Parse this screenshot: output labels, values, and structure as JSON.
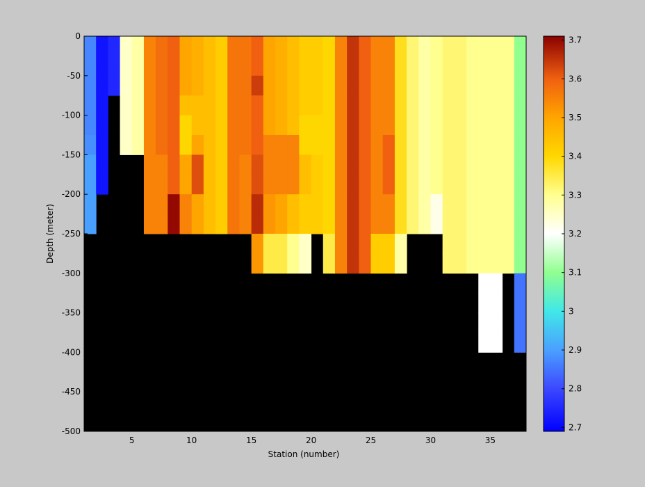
{
  "chart_data": {
    "type": "heatmap",
    "x_label": "Station (number)",
    "y_label": "Depth (meter)",
    "x_edges": [
      1,
      2,
      3,
      4,
      5,
      6,
      7,
      8,
      9,
      10,
      11,
      12,
      13,
      14,
      15,
      16,
      17,
      18,
      19,
      20,
      21,
      22,
      23,
      24,
      25,
      26,
      27,
      28,
      29,
      30,
      31,
      32,
      33,
      34,
      35,
      36,
      37,
      38
    ],
    "depth_edges": [
      0,
      -25,
      -50,
      -75,
      -100,
      -125,
      -150,
      -175,
      -200,
      -225,
      -250,
      -275,
      -300,
      -325,
      -350,
      -375,
      -400,
      -425,
      -450,
      -475,
      -500
    ],
    "xlim": [
      1,
      38
    ],
    "ylim": [
      -500,
      0
    ],
    "xticks": [
      5,
      10,
      15,
      20,
      25,
      30,
      35
    ],
    "yticks": [
      0,
      -50,
      -100,
      -150,
      -200,
      -250,
      -300,
      -350,
      -400,
      -450,
      -500
    ],
    "missing_color": "#000000",
    "clim": [
      2.69,
      3.71
    ],
    "cticks": [
      2.7,
      2.8,
      2.9,
      3,
      3.1,
      3.2,
      3.3,
      3.4,
      3.5,
      3.6,
      3.7
    ],
    "colormap": [
      [
        2.69,
        "#0000ff"
      ],
      [
        2.8,
        "#3c48ff"
      ],
      [
        2.9,
        "#4aa0ff"
      ],
      [
        3.0,
        "#40e8e8"
      ],
      [
        3.1,
        "#90ff90"
      ],
      [
        3.2,
        "#ffffff"
      ],
      [
        3.3,
        "#ffff90"
      ],
      [
        3.4,
        "#ffd700"
      ],
      [
        3.5,
        "#ffa500"
      ],
      [
        3.6,
        "#f06010"
      ],
      [
        3.71,
        "#8b0000"
      ]
    ],
    "values": [
      [
        2.87,
        2.87,
        2.87,
        2.87,
        2.87,
        2.88,
        2.9,
        2.9,
        2.9,
        2.9,
        null,
        null,
        null,
        null,
        null,
        null,
        null,
        null,
        null,
        null
      ],
      [
        2.72,
        2.72,
        2.72,
        2.72,
        2.72,
        2.72,
        2.72,
        2.72,
        null,
        null,
        null,
        null,
        null,
        null,
        null,
        null,
        null,
        null,
        null,
        null
      ],
      [
        2.75,
        2.75,
        2.75,
        null,
        null,
        null,
        null,
        null,
        null,
        null,
        null,
        null,
        null,
        null,
        null,
        null,
        null,
        null,
        null,
        null
      ],
      [
        3.25,
        3.25,
        3.25,
        3.25,
        3.25,
        3.25,
        null,
        null,
        null,
        null,
        null,
        null,
        null,
        null,
        null,
        null,
        null,
        null,
        null,
        null
      ],
      [
        3.28,
        3.28,
        3.28,
        3.28,
        3.28,
        3.28,
        null,
        null,
        null,
        null,
        null,
        null,
        null,
        null,
        null,
        null,
        null,
        null,
        null,
        null
      ],
      [
        3.55,
        3.55,
        3.55,
        3.55,
        3.55,
        3.55,
        3.55,
        3.55,
        3.55,
        3.55,
        null,
        null,
        null,
        null,
        null,
        null,
        null,
        null,
        null,
        null
      ],
      [
        3.58,
        3.58,
        3.58,
        3.58,
        3.58,
        3.58,
        3.55,
        3.55,
        3.55,
        3.55,
        null,
        null,
        null,
        null,
        null,
        null,
        null,
        null,
        null,
        null
      ],
      [
        3.6,
        3.6,
        3.6,
        3.6,
        3.6,
        3.6,
        3.6,
        3.6,
        3.7,
        3.7,
        null,
        null,
        null,
        null,
        null,
        null,
        null,
        null,
        null,
        null
      ],
      [
        3.5,
        3.5,
        3.5,
        3.45,
        3.4,
        3.4,
        3.5,
        3.5,
        3.55,
        3.55,
        null,
        null,
        null,
        null,
        null,
        null,
        null,
        null,
        null,
        null
      ],
      [
        3.48,
        3.48,
        3.48,
        3.45,
        3.45,
        3.5,
        3.62,
        3.62,
        3.5,
        3.5,
        null,
        null,
        null,
        null,
        null,
        null,
        null,
        null,
        null,
        null
      ],
      [
        3.45,
        3.45,
        3.45,
        3.45,
        3.45,
        3.45,
        3.45,
        3.45,
        3.45,
        3.45,
        null,
        null,
        null,
        null,
        null,
        null,
        null,
        null,
        null,
        null
      ],
      [
        3.42,
        3.42,
        3.42,
        3.42,
        3.42,
        3.42,
        3.42,
        3.42,
        3.42,
        3.42,
        null,
        null,
        null,
        null,
        null,
        null,
        null,
        null,
        null,
        null
      ],
      [
        3.57,
        3.57,
        3.57,
        3.57,
        3.57,
        3.57,
        3.57,
        3.57,
        3.57,
        3.57,
        null,
        null,
        null,
        null,
        null,
        null,
        null,
        null,
        null,
        null
      ],
      [
        3.57,
        3.57,
        3.57,
        3.57,
        3.57,
        3.57,
        3.55,
        3.55,
        3.55,
        3.55,
        null,
        null,
        null,
        null,
        null,
        null,
        null,
        null,
        null,
        null
      ],
      [
        3.6,
        3.6,
        3.64,
        3.6,
        3.6,
        3.6,
        3.62,
        3.62,
        3.66,
        3.66,
        3.52,
        3.52,
        null,
        null,
        null,
        null,
        null,
        null,
        null,
        null
      ],
      [
        3.5,
        3.5,
        3.5,
        3.5,
        3.5,
        3.55,
        3.55,
        3.55,
        3.52,
        3.52,
        3.35,
        3.35,
        null,
        null,
        null,
        null,
        null,
        null,
        null,
        null
      ],
      [
        3.48,
        3.48,
        3.48,
        3.48,
        3.48,
        3.55,
        3.55,
        3.55,
        3.5,
        3.5,
        3.35,
        3.35,
        null,
        null,
        null,
        null,
        null,
        null,
        null,
        null
      ],
      [
        3.45,
        3.45,
        3.45,
        3.45,
        3.45,
        3.55,
        3.55,
        3.55,
        3.45,
        3.45,
        3.3,
        3.3,
        null,
        null,
        null,
        null,
        null,
        null,
        null,
        null
      ],
      [
        3.42,
        3.42,
        3.42,
        3.42,
        3.4,
        3.4,
        3.45,
        3.45,
        3.42,
        3.42,
        3.25,
        3.25,
        null,
        null,
        null,
        null,
        null,
        null,
        null,
        null
      ],
      [
        3.42,
        3.42,
        3.42,
        3.42,
        3.4,
        3.4,
        3.42,
        3.42,
        3.42,
        3.42,
        null,
        null,
        null,
        null,
        null,
        null,
        null,
        null,
        null,
        null
      ],
      [
        3.4,
        3.4,
        3.4,
        3.4,
        3.4,
        3.4,
        3.4,
        3.4,
        3.4,
        3.4,
        3.35,
        3.35,
        null,
        null,
        null,
        null,
        null,
        null,
        null,
        null
      ],
      [
        3.55,
        3.55,
        3.55,
        3.55,
        3.55,
        3.55,
        3.55,
        3.55,
        3.55,
        3.55,
        3.55,
        3.55,
        null,
        null,
        null,
        null,
        null,
        null,
        null,
        null
      ],
      [
        3.65,
        3.65,
        3.65,
        3.65,
        3.65,
        3.65,
        3.65,
        3.65,
        3.65,
        3.65,
        3.65,
        3.65,
        null,
        null,
        null,
        null,
        null,
        null,
        null,
        null
      ],
      [
        3.6,
        3.6,
        3.6,
        3.6,
        3.6,
        3.6,
        3.6,
        3.6,
        3.6,
        3.6,
        3.6,
        3.6,
        null,
        null,
        null,
        null,
        null,
        null,
        null,
        null
      ],
      [
        3.55,
        3.55,
        3.55,
        3.55,
        3.55,
        3.55,
        3.55,
        3.55,
        3.55,
        3.55,
        3.42,
        3.42,
        null,
        null,
        null,
        null,
        null,
        null,
        null,
        null
      ],
      [
        3.55,
        3.55,
        3.55,
        3.55,
        3.55,
        3.6,
        3.6,
        3.6,
        3.55,
        3.55,
        3.42,
        3.42,
        null,
        null,
        null,
        null,
        null,
        null,
        null,
        null
      ],
      [
        3.38,
        3.38,
        3.38,
        3.38,
        3.38,
        3.38,
        3.38,
        3.38,
        3.38,
        3.38,
        3.28,
        3.28,
        null,
        null,
        null,
        null,
        null,
        null,
        null,
        null
      ],
      [
        3.32,
        3.32,
        3.32,
        3.32,
        3.32,
        3.32,
        3.32,
        3.32,
        3.32,
        3.32,
        null,
        null,
        null,
        null,
        null,
        null,
        null,
        null,
        null,
        null
      ],
      [
        3.28,
        3.28,
        3.28,
        3.28,
        3.28,
        3.28,
        3.28,
        3.28,
        3.28,
        3.28,
        null,
        null,
        null,
        null,
        null,
        null,
        null,
        null,
        null,
        null
      ],
      [
        3.3,
        3.3,
        3.3,
        3.3,
        3.3,
        3.3,
        3.3,
        3.3,
        3.22,
        3.22,
        null,
        null,
        null,
        null,
        null,
        null,
        null,
        null,
        null,
        null
      ],
      [
        3.32,
        3.32,
        3.32,
        3.32,
        3.32,
        3.32,
        3.32,
        3.32,
        3.32,
        3.32,
        3.32,
        3.32,
        null,
        null,
        null,
        null,
        null,
        null,
        null,
        null
      ],
      [
        3.32,
        3.32,
        3.32,
        3.32,
        3.32,
        3.32,
        3.32,
        3.32,
        3.32,
        3.32,
        3.32,
        3.32,
        null,
        null,
        null,
        null,
        null,
        null,
        null,
        null
      ],
      [
        3.3,
        3.3,
        3.3,
        3.3,
        3.3,
        3.3,
        3.3,
        3.3,
        3.3,
        3.3,
        3.3,
        3.3,
        null,
        null,
        null,
        null,
        null,
        null,
        null,
        null
      ],
      [
        3.3,
        3.3,
        3.3,
        3.3,
        3.3,
        3.3,
        3.3,
        3.3,
        3.3,
        3.3,
        3.3,
        3.3,
        3.2,
        3.2,
        3.2,
        3.2,
        null,
        null,
        null,
        null
      ],
      [
        3.3,
        3.3,
        3.3,
        3.3,
        3.3,
        3.3,
        3.3,
        3.3,
        3.3,
        3.3,
        3.3,
        3.3,
        3.2,
        3.2,
        3.2,
        3.2,
        null,
        null,
        null,
        null
      ],
      [
        3.3,
        3.3,
        3.3,
        3.3,
        3.3,
        3.3,
        3.3,
        3.3,
        3.3,
        3.3,
        3.3,
        3.3,
        null,
        null,
        null,
        null,
        null,
        null,
        null,
        null
      ],
      [
        3.1,
        3.1,
        3.1,
        3.1,
        3.1,
        3.1,
        3.1,
        3.1,
        3.1,
        3.1,
        3.1,
        3.1,
        2.85,
        2.85,
        2.85,
        2.85,
        null,
        null,
        null,
        null
      ]
    ]
  }
}
